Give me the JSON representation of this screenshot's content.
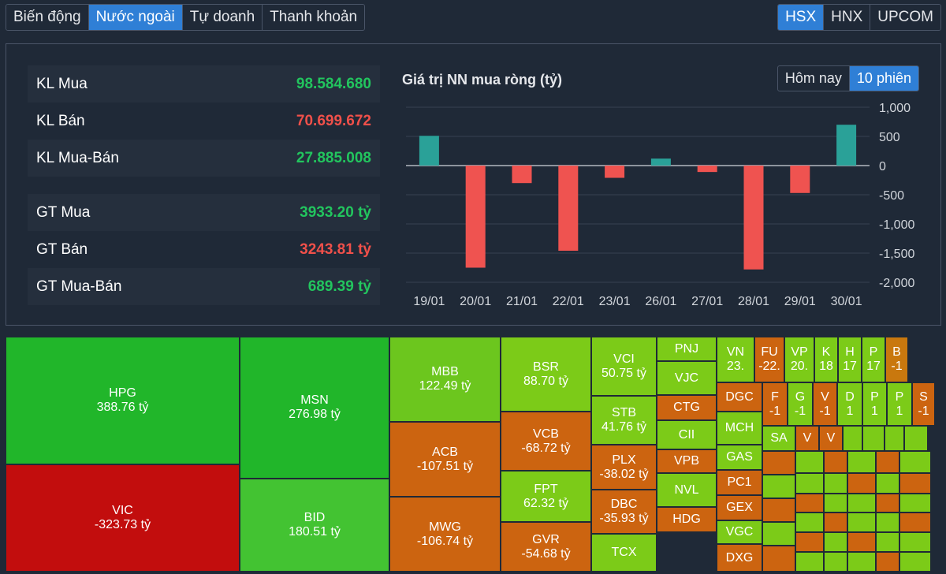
{
  "tabs_left": [
    "Biến động",
    "Nước ngoài",
    "Tự doanh",
    "Thanh khoản"
  ],
  "tabs_right": [
    "HSX",
    "HNX",
    "UPCOM"
  ],
  "stats": {
    "kl_mua_label": "KL Mua",
    "kl_mua_value": "98.584.680",
    "kl_ban_label": "KL Bán",
    "kl_ban_value": "70.699.672",
    "kl_net_label": "KL Mua-Bán",
    "kl_net_value": "27.885.008",
    "gt_mua_label": "GT Mua",
    "gt_mua_value": "3933.20 tỷ",
    "gt_ban_label": "GT Bán",
    "gt_ban_value": "3243.81 tỷ",
    "gt_net_label": "GT Mua-Bán",
    "gt_net_value": "689.39 tỷ"
  },
  "chart_title": "Giá trị NN mua ròng (tỷ)",
  "period_buttons": [
    "Hôm nay",
    "10 phiên"
  ],
  "colors": {
    "positive": "#2aa198",
    "negative": "#ef5350",
    "accent": "#2f7fd6"
  },
  "chart_data": {
    "type": "bar",
    "title": "Giá trị NN mua ròng (tỷ)",
    "categories": [
      "19/01",
      "20/01",
      "21/01",
      "22/01",
      "23/01",
      "26/01",
      "27/01",
      "28/01",
      "29/01",
      "30/01"
    ],
    "values": [
      510,
      -1750,
      -300,
      -1460,
      -210,
      120,
      -110,
      -1780,
      -470,
      700
    ],
    "ylim": [
      -2000,
      1000
    ],
    "yticks": [
      "1,000",
      "500",
      "0",
      "-500",
      "-1,000",
      "-1,500",
      "-2,000"
    ],
    "ytick_values": [
      1000,
      500,
      0,
      -500,
      -1000,
      -1500,
      -2000
    ],
    "grid": true
  },
  "treemap": [
    {
      "t": "HPG",
      "v": "388.76 tỷ"
    },
    {
      "t": "VIC",
      "v": "-323.73 tỷ"
    },
    {
      "t": "MSN",
      "v": "276.98 tỷ"
    },
    {
      "t": "BID",
      "v": "180.51 tỷ"
    },
    {
      "t": "MBB",
      "v": "122.49 tỷ"
    },
    {
      "t": "ACB",
      "v": "-107.51 tỷ"
    },
    {
      "t": "MWG",
      "v": "-106.74 tỷ"
    },
    {
      "t": "BSR",
      "v": "88.70 tỷ"
    },
    {
      "t": "VCB",
      "v": "-68.72 tỷ"
    },
    {
      "t": "FPT",
      "v": "62.32 tỷ"
    },
    {
      "t": "GVR",
      "v": "-54.68 tỷ"
    },
    {
      "t": "VCI",
      "v": "50.75 tỷ"
    },
    {
      "t": "STB",
      "v": "41.76 tỷ"
    },
    {
      "t": "PLX",
      "v": "-38.02 tỷ"
    },
    {
      "t": "DBC",
      "v": "-35.93 tỷ"
    },
    {
      "t": "TCX",
      "v": ""
    },
    {
      "t": "PNJ",
      "v": ""
    },
    {
      "t": "VJC",
      "v": ""
    },
    {
      "t": "CTG",
      "v": ""
    },
    {
      "t": "CII",
      "v": ""
    },
    {
      "t": "VPB",
      "v": ""
    },
    {
      "t": "NVL",
      "v": ""
    },
    {
      "t": "HDG",
      "v": ""
    },
    {
      "t": "VN",
      "v": "23."
    },
    {
      "t": "FU",
      "v": "-22."
    },
    {
      "t": "VP",
      "v": "20."
    },
    {
      "t": "K",
      "v": "18"
    },
    {
      "t": "H",
      "v": "17"
    },
    {
      "t": "P",
      "v": "17"
    },
    {
      "t": "B",
      "v": "-1"
    },
    {
      "t": "DGC",
      "v": ""
    },
    {
      "t": "MCH",
      "v": ""
    },
    {
      "t": "GAS",
      "v": ""
    },
    {
      "t": "PC1",
      "v": ""
    },
    {
      "t": "GEX",
      "v": ""
    },
    {
      "t": "VGC",
      "v": ""
    },
    {
      "t": "DXG",
      "v": ""
    },
    {
      "t": "F",
      "v": "-1"
    },
    {
      "t": "G",
      "v": "-1"
    },
    {
      "t": "V",
      "v": "-1"
    },
    {
      "t": "D",
      "v": "1"
    },
    {
      "t": "P",
      "v": "1"
    },
    {
      "t": "P",
      "v": "1"
    },
    {
      "t": "S",
      "v": "-1"
    },
    {
      "t": "SA",
      "v": ""
    },
    {
      "t": "V",
      "v": ""
    },
    {
      "t": "V",
      "v": ""
    }
  ]
}
